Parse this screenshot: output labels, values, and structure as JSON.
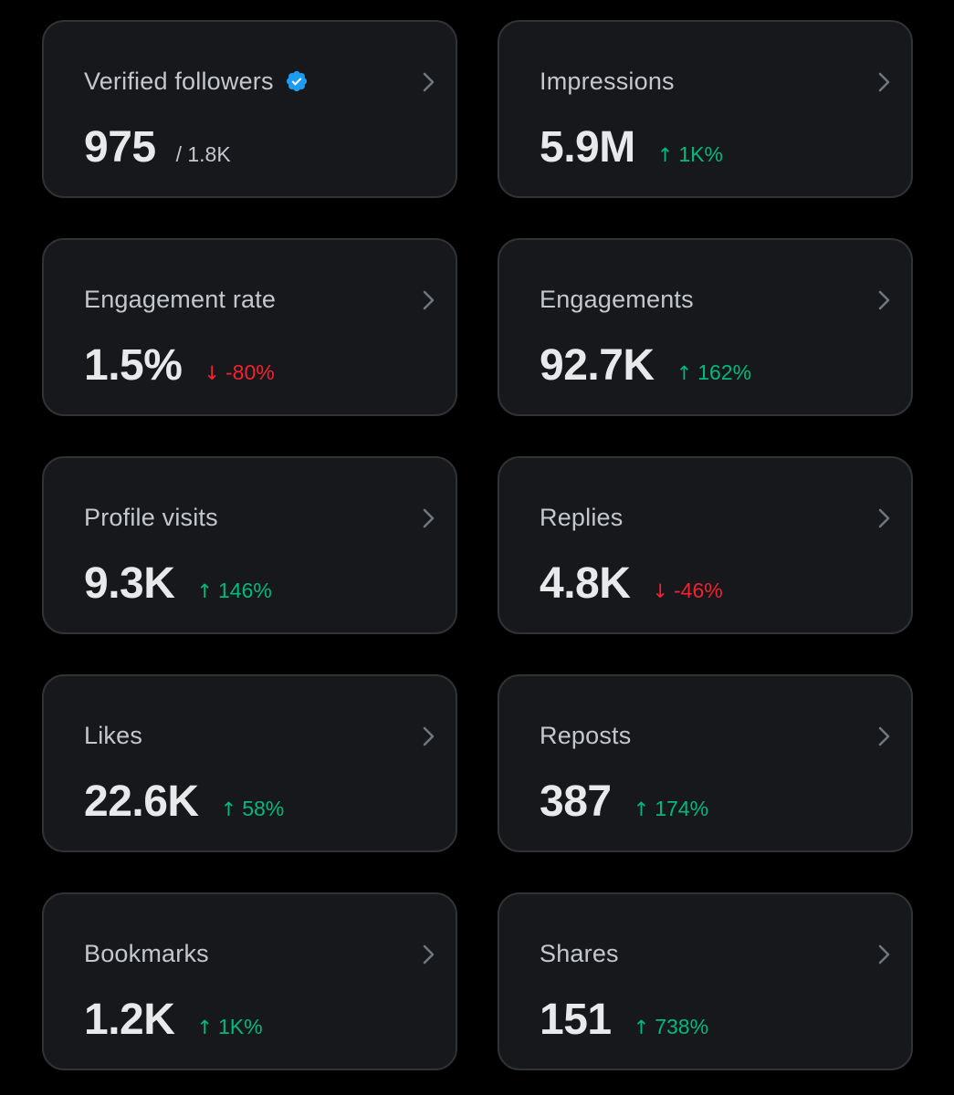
{
  "colors": {
    "background": "#000000",
    "card": "#16181c",
    "card_border": "#2f3336",
    "value_text": "#e7e9ea",
    "label_text": "#c4c7cb",
    "up": "#00ba7c",
    "down": "#f4212e",
    "verified": "#1d9bf0"
  },
  "cards": [
    {
      "title": "Verified followers",
      "value": "975",
      "sub": "/ 1.8K",
      "icon": "verified-badge-icon"
    },
    {
      "title": "Impressions",
      "value": "5.9M",
      "arrow": "↑",
      "delta": "1K%",
      "trend": "up"
    },
    {
      "title": "Engagement rate",
      "value": "1.5%",
      "arrow": "↓",
      "delta": "-80%",
      "trend": "down"
    },
    {
      "title": "Engagements",
      "value": "92.7K",
      "arrow": "↑",
      "delta": "162%",
      "trend": "up"
    },
    {
      "title": "Profile visits",
      "value": "9.3K",
      "arrow": "↑",
      "delta": "146%",
      "trend": "up"
    },
    {
      "title": "Replies",
      "value": "4.8K",
      "arrow": "↓",
      "delta": "-46%",
      "trend": "down"
    },
    {
      "title": "Likes",
      "value": "22.6K",
      "arrow": "↑",
      "delta": "58%",
      "trend": "up"
    },
    {
      "title": "Reposts",
      "value": "387",
      "arrow": "↑",
      "delta": "174%",
      "trend": "up"
    },
    {
      "title": "Bookmarks",
      "value": "1.2K",
      "arrow": "↑",
      "delta": "1K%",
      "trend": "up"
    },
    {
      "title": "Shares",
      "value": "151",
      "arrow": "↑",
      "delta": "738%",
      "trend": "up"
    }
  ]
}
